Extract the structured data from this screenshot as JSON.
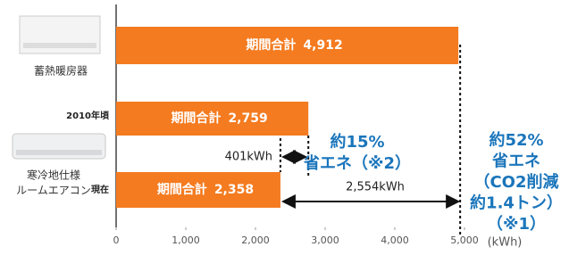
{
  "chart_data": {
    "type": "bar",
    "orientation": "horizontal",
    "categories": [
      null,
      "2010年頃",
      "現在"
    ],
    "values": [
      4912,
      2759,
      2358
    ],
    "value_labels": [
      "4,912",
      "2,759",
      "2,358"
    ],
    "bar_label_prefix": "期間合計",
    "color": "#f47b20",
    "xlim": [
      0,
      5000
    ],
    "xticks": [
      0,
      {
        "value": 1000,
        "label": "1,000"
      },
      {
        "value": 2000,
        "label": "2,000"
      },
      {
        "value": 3000,
        "label": "3,000"
      },
      {
        "value": 4000,
        "label": "4,000"
      },
      {
        "value": 5000,
        "label": "5,000"
      }
    ],
    "x_unit": "(kWh)",
    "annotations": [
      {
        "lines": [
          "401kWh"
        ]
      },
      {
        "lines": [
          "約15%",
          "省エネ（※2）"
        ]
      },
      {
        "lines": [
          "2,554kWh"
        ]
      },
      {
        "lines": [
          "約52%",
          "省エネ",
          "（CO2削減",
          "約1.4トン）",
          "（※1）"
        ]
      }
    ]
  },
  "devices": [
    {
      "lines": [
        "蓄熱暖房器"
      ]
    },
    {
      "lines": [
        "寒冷地仕様",
        "ルームエアコン"
      ]
    }
  ]
}
